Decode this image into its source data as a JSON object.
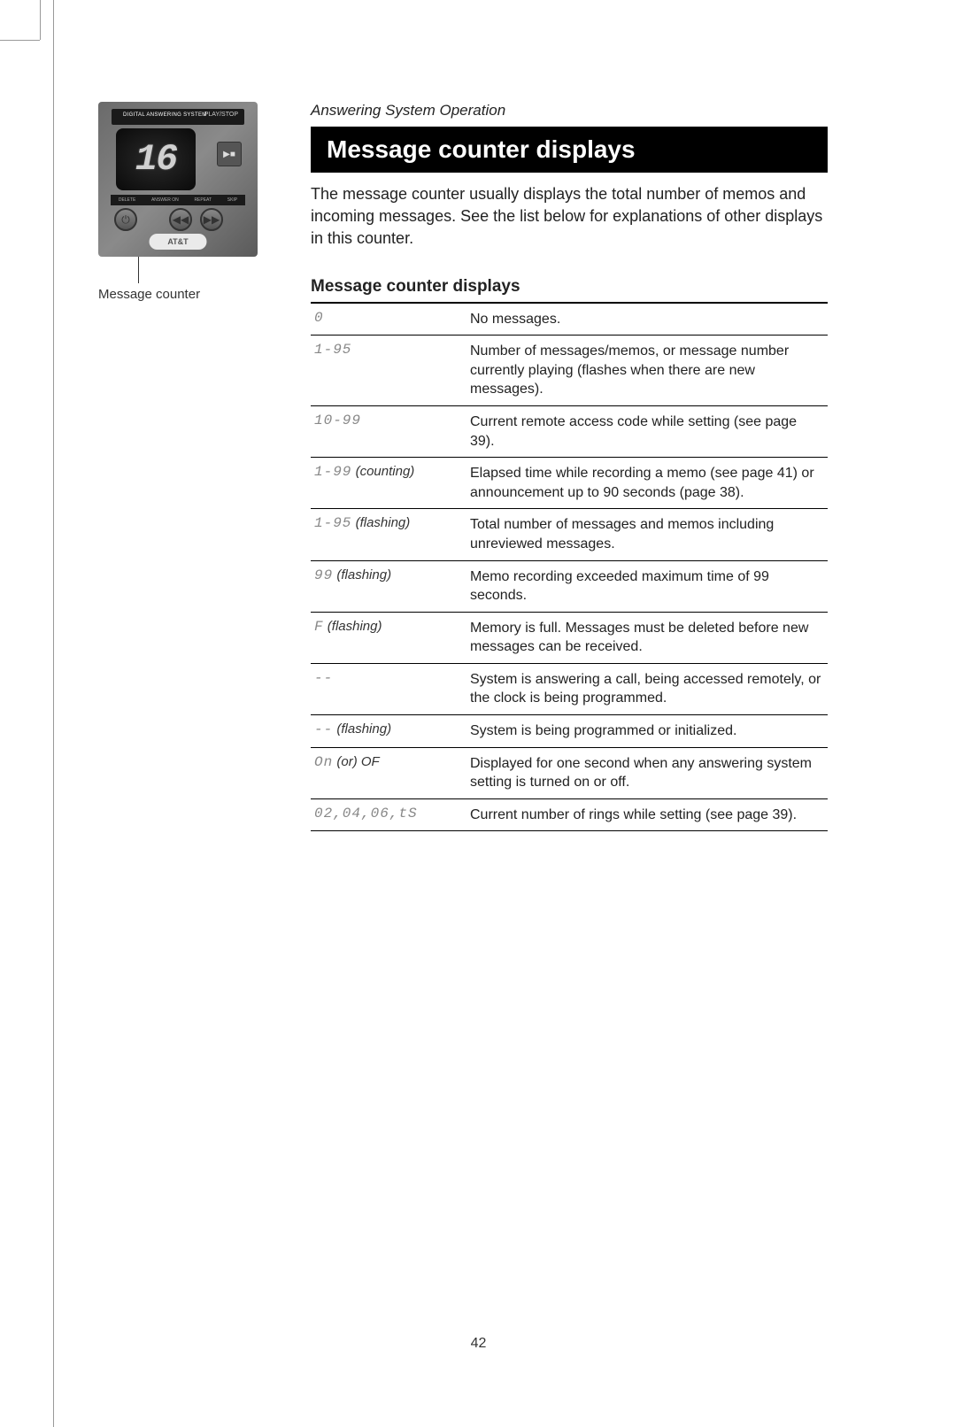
{
  "breadcrumb": "Answering System Operation",
  "title": "Message counter displays",
  "intro": "The message counter usually displays the total number of memos and incoming messages. See the list below for explanations of other displays in this counter.",
  "photo": {
    "display_value": "16",
    "top_label": "DIGITAL ANSWERING SYSTEM",
    "playstop": "PLAY/STOP",
    "btn_labels": [
      "DELETE",
      "ANSWER ON",
      "REPEAT",
      "SKIP"
    ],
    "logo": "AT&T"
  },
  "caption": "Message counter",
  "table_title": "Message counter displays",
  "rows": [
    {
      "code": "0",
      "modifier": "",
      "desc": "No messages."
    },
    {
      "code": "1-95",
      "modifier": "",
      "desc": "Number of messages/memos, or message number currently playing (flashes when there are new messages)."
    },
    {
      "code": "10-99",
      "modifier": "",
      "desc": "Current remote access code while setting (see page 39)."
    },
    {
      "code": "1-99",
      "modifier": "(counting)",
      "desc": "Elapsed time while recording a memo (see page 41) or announcement up to 90 seconds  (page 38)."
    },
    {
      "code": "1-95",
      "modifier": "(flashing)",
      "desc": "Total number of messages and memos including unreviewed messages."
    },
    {
      "code": "99",
      "modifier": "(flashing)",
      "desc": "Memo recording exceeded maximum time of 99 seconds."
    },
    {
      "code": "F",
      "modifier": "(flashing)",
      "desc": "Memory is full. Messages must be deleted before new messages can be received."
    },
    {
      "code": "--",
      "modifier": "",
      "desc": "System is answering a call, being accessed remotely, or the clock is being programmed."
    },
    {
      "code": "--",
      "modifier": "(flashing)",
      "desc": "System is being programmed or initialized."
    },
    {
      "code": "On",
      "modifier": "(or) OF",
      "desc": "Displayed for one second when any answering system setting is turned on or off."
    },
    {
      "code": "02,04,06,tS",
      "modifier": "",
      "desc": "Current number of rings while setting (see page 39)."
    }
  ],
  "page_number": "42"
}
